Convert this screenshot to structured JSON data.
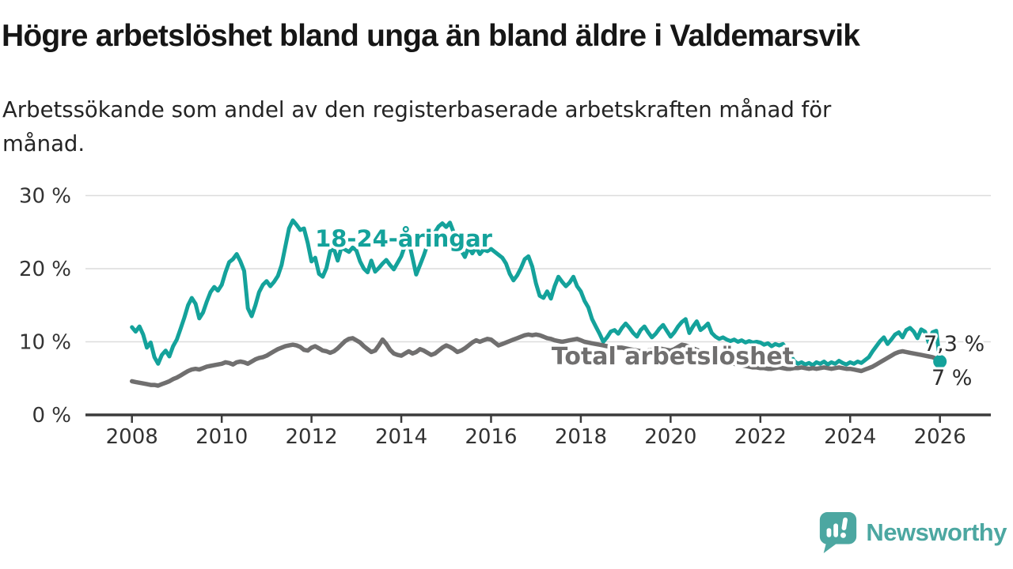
{
  "header": {
    "title": "Högre arbetslöshet bland unga än bland äldre i Valdemarsvik",
    "subtitle": "Arbetssökande som andel av den registerbaserade arbetskraften månad för månad."
  },
  "footer": {
    "brand": "Newsworthy"
  },
  "colors": {
    "youth_line": "#14A29B",
    "total_line": "#706F6F",
    "grid": "#DCDCDC",
    "axis": "#3B3B3B",
    "tick_text": "#333333",
    "brand_teal": "#4CA7A1"
  },
  "chart_data": {
    "type": "line",
    "title": "Högre arbetslöshet bland unga än bland äldre i Valdemarsvik",
    "subtitle": "Arbetssökande som andel av den registerbaserade arbetskraften månad för månad.",
    "grid": true,
    "legend_position": "inline-labels",
    "x_axis": {
      "tick_years": [
        2008,
        2010,
        2012,
        2014,
        2016,
        2018,
        2020,
        2022,
        2024,
        2026
      ],
      "tick_labels": [
        "2008",
        "2010",
        "2012",
        "2014",
        "2016",
        "2018",
        "2020",
        "2022",
        "2024",
        "2026"
      ],
      "range": [
        2007,
        2027.1
      ]
    },
    "y_axis": {
      "tick_values": [
        0,
        10,
        20,
        30
      ],
      "tick_labels": [
        "0 %",
        "10 %",
        "20 %",
        "30 %"
      ],
      "range": [
        0,
        32
      ],
      "unit": "%"
    },
    "series": [
      {
        "name": "18-24-åringar",
        "color": "#14A29B",
        "start_year": 2008,
        "points_per_year": 12,
        "end_value": 7.3,
        "values": [
          12,
          11.4,
          12.1,
          11,
          9.2,
          9.9,
          7.9,
          7,
          8.2,
          8.8,
          8,
          9.4,
          10.3,
          11.8,
          13.3,
          15,
          16,
          15.2,
          13.2,
          14,
          15.5,
          16.8,
          17.5,
          17,
          17.8,
          19.5,
          20.9,
          21.3,
          22,
          21,
          19.7,
          14.6,
          13.5,
          15,
          16.8,
          17.8,
          18.3,
          17.6,
          18.2,
          19,
          20.5,
          23,
          25.5,
          26.6,
          26,
          25.3,
          25.5,
          23.5,
          21,
          21.5,
          19.3,
          18.9,
          20.1,
          22.4,
          22.7,
          21.1,
          22.9,
          22.6,
          22.3,
          22.9,
          22.5,
          21,
          20,
          19.5,
          21.1,
          19.6,
          20.1,
          20.7,
          21.2,
          20.5,
          19.9,
          20.8,
          21.7,
          23.2,
          23.8,
          21.5,
          19.2,
          20.5,
          21.8,
          23.3,
          24.2,
          25,
          25.8,
          26.2,
          25.7,
          26.3,
          25,
          23.6,
          22.5,
          21.6,
          22.9,
          22.1,
          22.9,
          22,
          22.6,
          22.4,
          22.7,
          22.3,
          21.9,
          21.5,
          20.7,
          19.3,
          18.4,
          19.1,
          20.1,
          21.3,
          21.7,
          20.3,
          18,
          16.3,
          16,
          16.9,
          15.9,
          17.6,
          18.9,
          18.2,
          17.6,
          18.1,
          18.9,
          17.6,
          16.9,
          15.6,
          14.7,
          13.1,
          12.1,
          11.1,
          10,
          10.6,
          11.4,
          11.6,
          11.1,
          11.9,
          12.5,
          11.9,
          11.2,
          10.7,
          11.6,
          12.1,
          11.3,
          10.6,
          11.1,
          11.8,
          12.3,
          11.5,
          10.7,
          11.3,
          12.1,
          12.7,
          13.1,
          11.2,
          12.1,
          12.8,
          11.6,
          12,
          12.5,
          11.2,
          10.7,
          10.4,
          10.6,
          10.3,
          10.1,
          10.3,
          10,
          10.2,
          9.9,
          10.1,
          9.9,
          10,
          9.9,
          9.6,
          9.8,
          9.4,
          9.7,
          9.5,
          9.7,
          9,
          8.2,
          7.4,
          7,
          7.2,
          6.9,
          7.1,
          6.8,
          7.2,
          7,
          7.3,
          6.9,
          7.2,
          7,
          7.4,
          7.1,
          6.9,
          7.2,
          7,
          7.3,
          7.1,
          7.5,
          7.9,
          8.7,
          9.4,
          10.1,
          10.6,
          9.7,
          10.3,
          11,
          11.3,
          10.6,
          11.6,
          11.9,
          11.4,
          10.5,
          11.7,
          11.4,
          9.9,
          11.3,
          11.5,
          7.3
        ]
      },
      {
        "name": "Total arbetslöshet",
        "color": "#706F6F",
        "start_year": 2008,
        "points_per_year": 12,
        "end_value": 7,
        "values": [
          4.6,
          4.5,
          4.4,
          4.3,
          4.2,
          4.1,
          4.1,
          4,
          4.2,
          4.4,
          4.6,
          4.9,
          5.1,
          5.4,
          5.7,
          6,
          6.2,
          6.3,
          6.2,
          6.4,
          6.6,
          6.7,
          6.8,
          6.9,
          7,
          7.2,
          7.1,
          6.9,
          7.2,
          7.3,
          7.2,
          7,
          7.3,
          7.6,
          7.8,
          7.9,
          8.1,
          8.4,
          8.7,
          9,
          9.2,
          9.4,
          9.5,
          9.6,
          9.5,
          9.3,
          8.9,
          8.8,
          9.2,
          9.4,
          9.1,
          8.8,
          8.7,
          8.5,
          8.7,
          9.1,
          9.6,
          10.1,
          10.4,
          10.5,
          10.2,
          9.9,
          9.4,
          9,
          8.6,
          8.8,
          9.5,
          10.3,
          9.7,
          8.9,
          8.4,
          8.2,
          8.1,
          8.4,
          8.7,
          8.4,
          8.6,
          9,
          8.8,
          8.5,
          8.2,
          8.4,
          8.8,
          9.2,
          9.5,
          9.3,
          9,
          8.6,
          8.8,
          9.1,
          9.5,
          9.9,
          10.2,
          10,
          10.2,
          10.4,
          10.3,
          9.9,
          9.5,
          9.7,
          9.9,
          10.1,
          10.3,
          10.5,
          10.7,
          10.9,
          11,
          10.9,
          11,
          10.9,
          10.7,
          10.5,
          10.4,
          10.2,
          10.1,
          10,
          10.1,
          10.2,
          10.3,
          10.4,
          10.2,
          10,
          9.9,
          9.8,
          9.7,
          9.6,
          9.5,
          9.4,
          9.3,
          9.3,
          9.2,
          9.2,
          9.1,
          9,
          8.9,
          8.8,
          8.7,
          8.7,
          8.8,
          8.9,
          9,
          9.1,
          9,
          8.9,
          8.8,
          9,
          9.3,
          9.6,
          9.5,
          9.3,
          9.1,
          8.9,
          8.7,
          8.5,
          8.3,
          8.1,
          7.9,
          7.7,
          7.5,
          7.3,
          7.1,
          7,
          6.9,
          6.8,
          6.7,
          6.6,
          6.5,
          6.5,
          6.4,
          6.4,
          6.3,
          6.3,
          6.4,
          6.5,
          6.4,
          6.3,
          6.3,
          6.4,
          6.4,
          6.5,
          6.4,
          6.3,
          6.4,
          6.3,
          6.4,
          6.5,
          6.4,
          6.3,
          6.4,
          6.5,
          6.4,
          6.3,
          6.3,
          6.2,
          6.1,
          6,
          6.2,
          6.4,
          6.6,
          6.9,
          7.2,
          7.5,
          7.8,
          8.1,
          8.4,
          8.6,
          8.7,
          8.6,
          8.5,
          8.4,
          8.3,
          8.2,
          8.1,
          8,
          7.9,
          7.7,
          7
        ]
      }
    ],
    "end_labels": [
      {
        "text": "7,3 %",
        "series": "18-24-åringar"
      },
      {
        "text": "7 %",
        "series": "Total arbetslöshet"
      }
    ],
    "end_marker_series": "18-24-åringar"
  }
}
